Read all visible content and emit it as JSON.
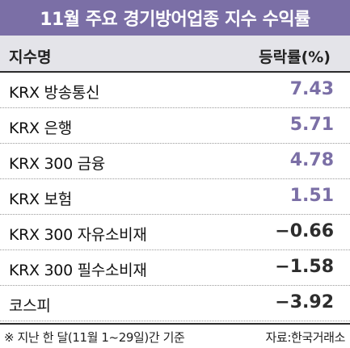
{
  "title": "11월 주요 경기방어업종 지수 수익률",
  "header": {
    "name_col": "지수명",
    "value_col": "등락률(%)"
  },
  "chart_data": {
    "type": "table",
    "title": "11월 주요 경기방어업종 지수 수익률",
    "columns": [
      "지수명",
      "등락률(%)"
    ],
    "rows": [
      {
        "name": "KRX 방송통신",
        "value": "7.43"
      },
      {
        "name": "KRX 은행",
        "value": "5.71"
      },
      {
        "name": "KRX 300 금융",
        "value": "4.78"
      },
      {
        "name": "KRX 보험",
        "value": "1.51"
      },
      {
        "name": "KRX 300 자유소비재",
        "value": "−0.66"
      },
      {
        "name": "KRX 300 필수소비재",
        "value": "−1.58"
      },
      {
        "name": "코스피",
        "value": "−3.92"
      }
    ]
  },
  "footer": {
    "note": "※ 지난 한 달(11월 1~29일)간 기준",
    "source": "자료:한국거래소"
  },
  "colors": {
    "accent": "#7b6fa6",
    "negative": "#2d2d2d",
    "header_bg": "#e4e4e9"
  }
}
